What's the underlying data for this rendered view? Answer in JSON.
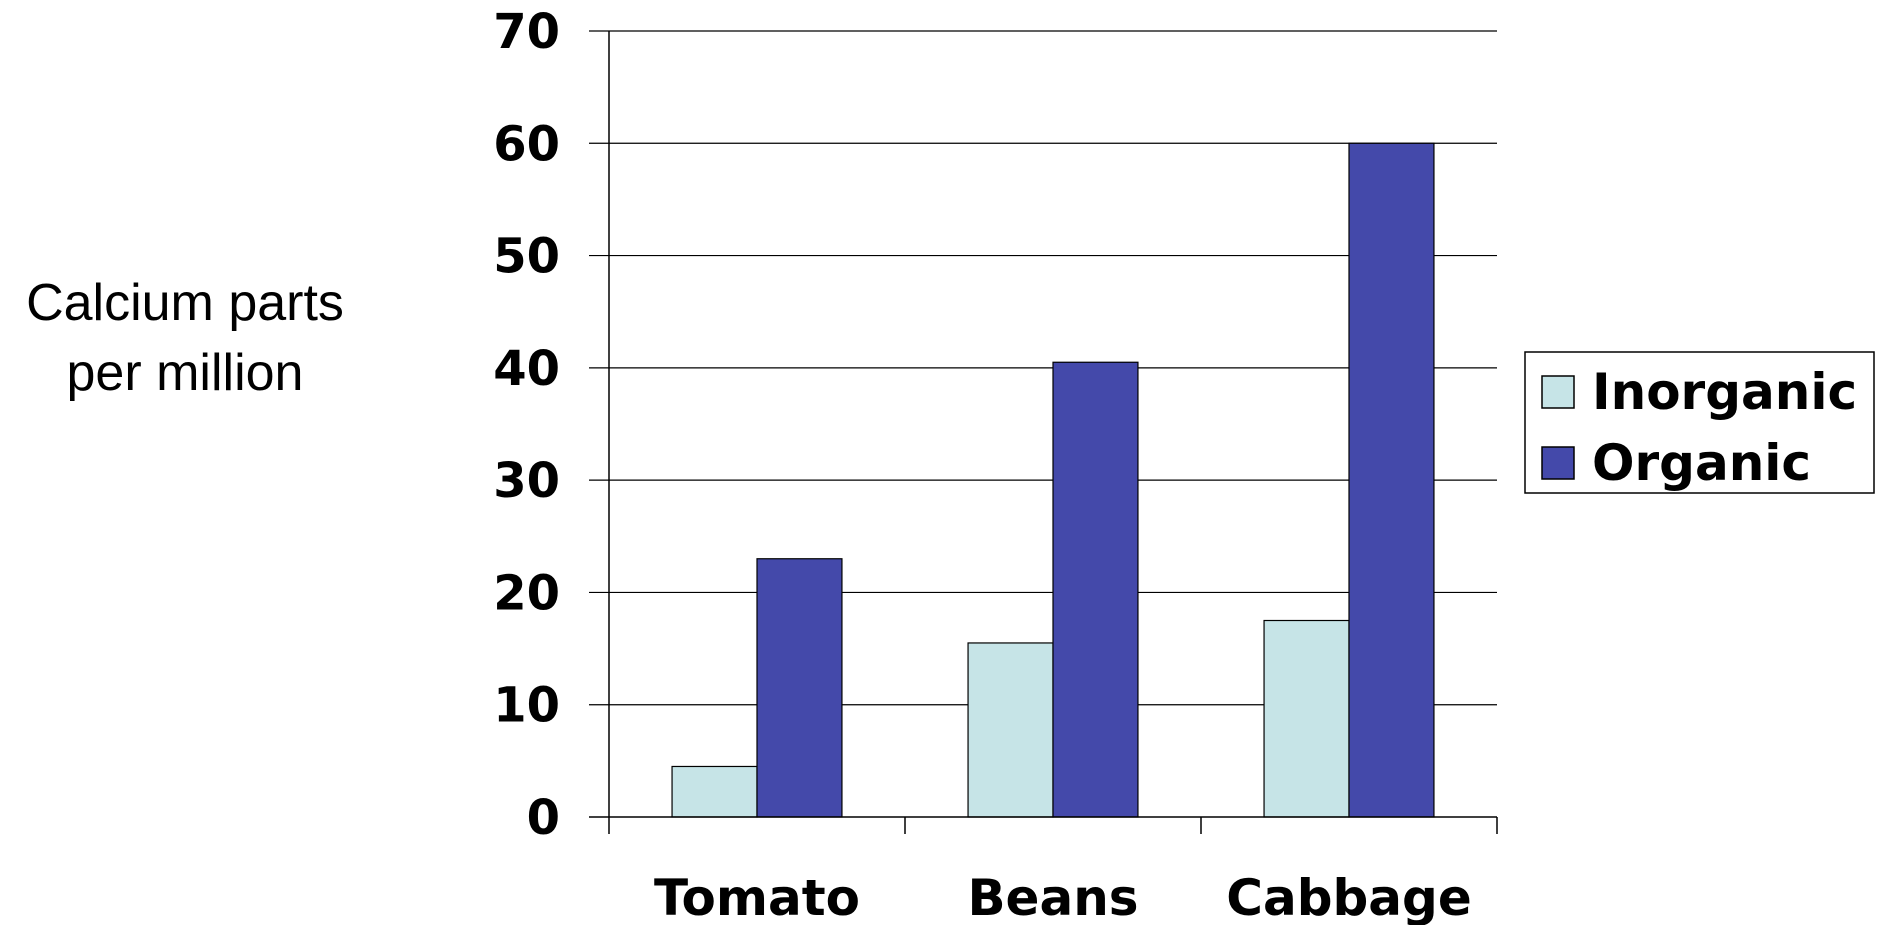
{
  "chart_data": {
    "type": "bar",
    "title": "",
    "ylabel_lines": [
      "Calcium parts",
      "per million"
    ],
    "xlabel": "",
    "categories": [
      "Tomato",
      "Beans",
      "Cabbage"
    ],
    "series": [
      {
        "name": "Inorganic",
        "values": [
          4.5,
          15.5,
          17.5
        ],
        "color": "#c6e4e7"
      },
      {
        "name": "Organic",
        "values": [
          23,
          40.5,
          60
        ],
        "color": "#4449aa"
      }
    ],
    "ylim": [
      0,
      70
    ],
    "yticks": [
      "0",
      "10",
      "20",
      "30",
      "40",
      "50",
      "60",
      "70"
    ],
    "grid": true,
    "legend_position": "right"
  }
}
